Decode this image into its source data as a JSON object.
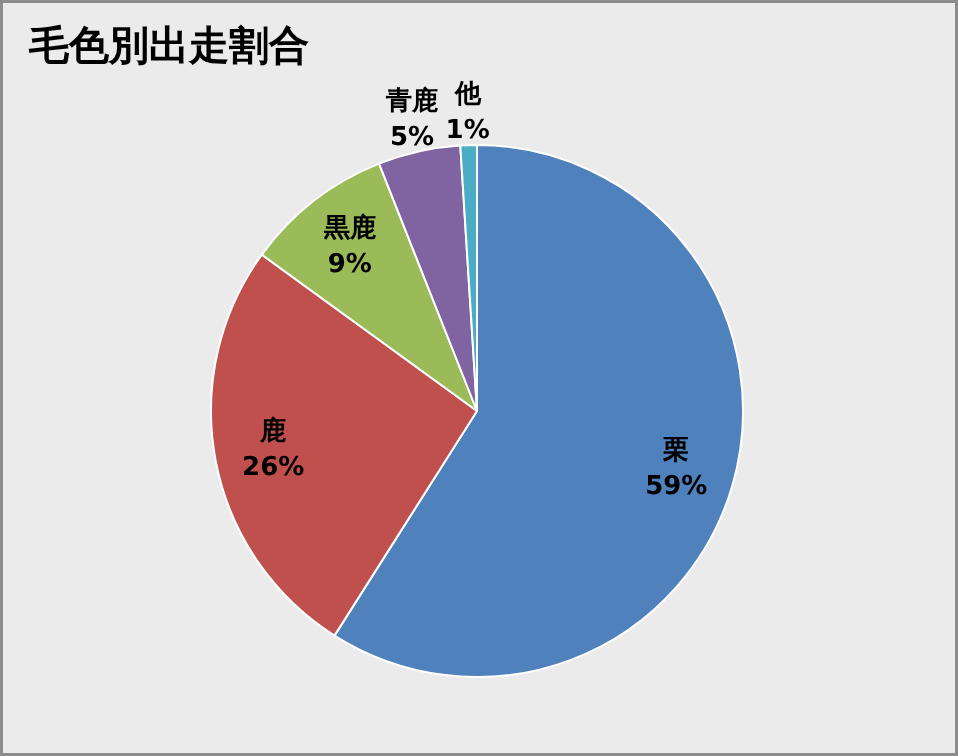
{
  "chart_data": {
    "type": "pie",
    "title": "毛色別出走割合",
    "categories": [
      "栗",
      "鹿",
      "黒鹿",
      "青鹿",
      "他"
    ],
    "values": [
      59,
      26,
      9,
      5,
      1
    ],
    "value_labels": [
      "59%",
      "26%",
      "9%",
      "5%",
      "1%"
    ],
    "colors": [
      "#4f81bd",
      "#c0504d",
      "#9bbb59",
      "#8064a2",
      "#4bacc6"
    ]
  }
}
